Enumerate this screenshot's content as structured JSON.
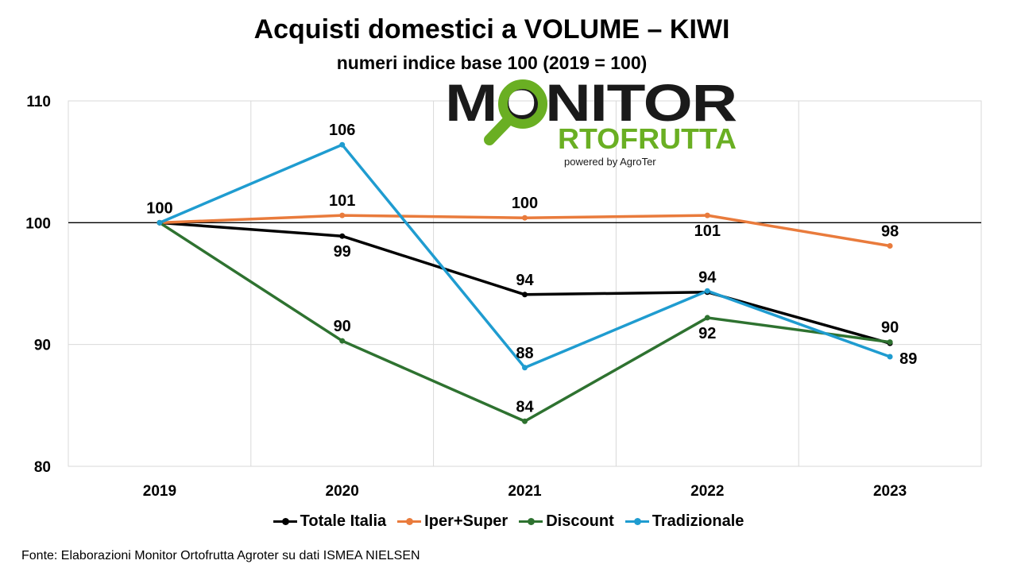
{
  "chart_data": {
    "type": "line",
    "title": "Acquisti domestici a VOLUME – KIWI",
    "subtitle": "numeri indice base 100 (2019 = 100)",
    "categories": [
      "2019",
      "2020",
      "2021",
      "2022",
      "2023"
    ],
    "ylim": [
      80,
      110
    ],
    "yticks": [
      80,
      90,
      100,
      110
    ],
    "reference_line": 100,
    "grid": true,
    "legend_position": "bottom",
    "series": [
      {
        "name": "Totale Italia",
        "color": "#000000",
        "values": [
          100,
          98.9,
          94.1,
          94.3,
          90.1
        ],
        "labels": [
          "",
          "99",
          "94",
          "94",
          ""
        ],
        "label_pos": [
          "",
          "below",
          "above",
          "above",
          ""
        ]
      },
      {
        "name": "Iper+Super",
        "color": "#E97B3C",
        "values": [
          100,
          100.6,
          100.4,
          100.6,
          98.1
        ],
        "labels": [
          "100",
          "101",
          "100",
          "101",
          "98"
        ],
        "label_pos": [
          "above",
          "above",
          "above",
          "below",
          "above"
        ]
      },
      {
        "name": "Discount",
        "color": "#2E7230",
        "values": [
          100,
          90.3,
          83.7,
          92.2,
          90.2
        ],
        "labels": [
          "",
          "90",
          "84",
          "92",
          "90"
        ],
        "label_pos": [
          "",
          "above",
          "above",
          "below",
          "above"
        ]
      },
      {
        "name": "Tradizionale",
        "color": "#1F9CD0",
        "values": [
          100,
          106.4,
          88.1,
          94.4,
          89.0
        ],
        "labels": [
          "",
          "106",
          "88",
          "",
          "89"
        ],
        "label_pos": [
          "",
          "above",
          "above",
          "",
          "right"
        ]
      }
    ]
  },
  "logo": {
    "line1": "MONITOR",
    "line2": "RTOFRUTTA",
    "powered": "powered by AgroTer",
    "color_dark": "#1a1a1a",
    "color_green": "#6AAF23"
  },
  "source": "Fonte: Elaborazioni Monitor Ortofrutta Agroter su dati ISMEA NIELSEN"
}
